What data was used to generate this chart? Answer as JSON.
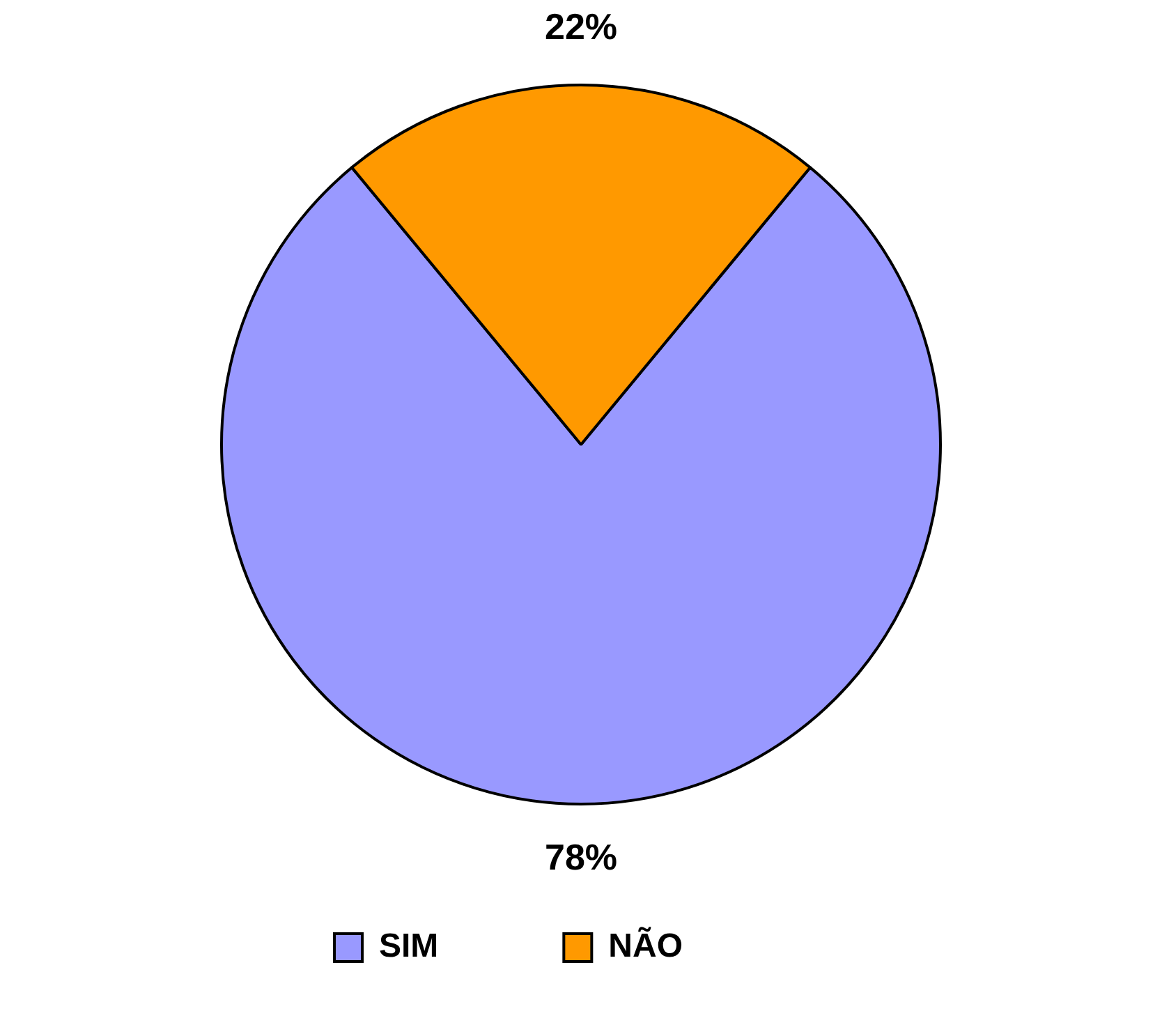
{
  "chart_data": {
    "type": "pie",
    "categories": [
      "SIM",
      "NÃO"
    ],
    "values": [
      78,
      22
    ],
    "colors": [
      "#9999ff",
      "#ff9900"
    ],
    "value_labels": [
      "78%",
      "22%"
    ],
    "legend": "bottom left"
  }
}
